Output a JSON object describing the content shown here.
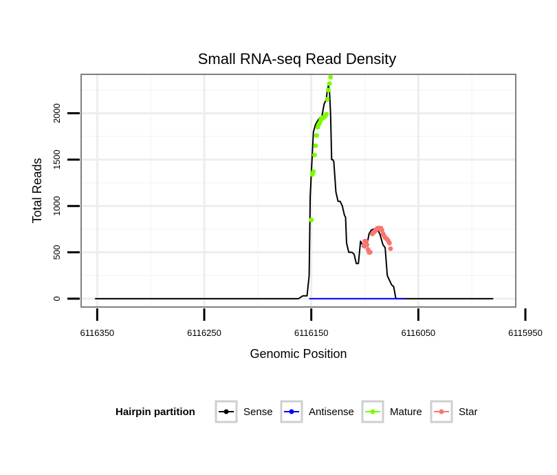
{
  "chart_data": {
    "type": "line",
    "title": "Small RNA-seq Read Density",
    "xlabel": "Genomic Position",
    "ylabel": "Total Reads",
    "x_reversed": true,
    "xlim": [
      6116365,
      6115959
    ],
    "ylim": [
      -90,
      2420
    ],
    "x_ticks": [
      6116350,
      6116250,
      6116150,
      6116050,
      6115950
    ],
    "x_tick_labels": [
      "6116350",
      "6116250",
      "6116150",
      "6116050",
      "6115950"
    ],
    "y_ticks": [
      0,
      500,
      1000,
      1500,
      2000
    ],
    "y_tick_labels": [
      "0",
      "500",
      "1000",
      "1500",
      "2000"
    ],
    "grid": true,
    "legend": {
      "title": "Hairpin partition",
      "placement": "bottom",
      "entries": [
        {
          "label": "Sense",
          "color": "#000000"
        },
        {
          "label": "Antisense",
          "color": "#0000ff"
        },
        {
          "label": "Mature",
          "color": "#7cfc00"
        },
        {
          "label": "Star",
          "color": "#f8766d"
        }
      ]
    },
    "series": [
      {
        "name": "Sense",
        "color": "#000000",
        "x": [
          6116352,
          6116162,
          6116158,
          6116154,
          6116152,
          6116151,
          6116150,
          6116148,
          6116146,
          6116144,
          6116142,
          6116140,
          6116138,
          6116136,
          6116135,
          6116134,
          6116133,
          6116132,
          6116131,
          6116130,
          6116129,
          6116127,
          6116125,
          6116123,
          6116121,
          6116119,
          6116118,
          6116117,
          6116115,
          6116114,
          6116112,
          6116110,
          6116108,
          6116106,
          6116104,
          6116102,
          6116100,
          6116098,
          6116096,
          6116094,
          6116092,
          6116090,
          6116088,
          6116086,
          6116085,
          6116084,
          6116083,
          6116081,
          6116079,
          6116077,
          6116075,
          6116073,
          6116071,
          6116069,
          6116068,
          6116067,
          6116066,
          6116065,
          6116063,
          6116061,
          6115980
        ],
        "y": [
          0,
          0,
          30,
          30,
          250,
          1100,
          1350,
          1800,
          1880,
          1920,
          1950,
          1970,
          2100,
          2150,
          2250,
          2300,
          2250,
          2000,
          1500,
          1500,
          1480,
          1150,
          1050,
          1050,
          1000,
          900,
          880,
          600,
          500,
          500,
          500,
          480,
          380,
          380,
          620,
          580,
          550,
          580,
          700,
          740,
          750,
          760,
          740,
          700,
          660,
          620,
          580,
          550,
          250,
          200,
          150,
          130,
          0,
          0,
          0,
          0,
          0,
          0,
          0,
          0,
          0
        ]
      },
      {
        "name": "Antisense",
        "color": "#0000ff",
        "x": [
          6116152,
          6116063
        ],
        "y": [
          0,
          0
        ]
      },
      {
        "name": "Mature",
        "color": "#7cfc00",
        "x": [
          6116150,
          6116149,
          6116148,
          6116147,
          6116146,
          6116145,
          6116144,
          6116143,
          6116142,
          6116141,
          6116140,
          6116139,
          6116138,
          6116137,
          6116136,
          6116135,
          6116134,
          6116133,
          6116132
        ],
        "y": [
          850,
          1340,
          1370,
          1550,
          1650,
          1760,
          1850,
          1880,
          1900,
          1930,
          1950,
          1950,
          1960,
          1970,
          1990,
          2150,
          2250,
          2320,
          2390
        ]
      },
      {
        "name": "Star",
        "color": "#f8766d",
        "x": [
          6116101,
          6116100,
          6116099,
          6116098,
          6116097,
          6116096,
          6116095,
          6116093,
          6116091,
          6116090,
          6116089,
          6116088,
          6116087,
          6116086,
          6116085,
          6116084,
          6116083,
          6116082,
          6116081,
          6116080,
          6116079,
          6116078,
          6116077,
          6116076
        ],
        "y": [
          570,
          620,
          620,
          580,
          530,
          500,
          500,
          700,
          720,
          740,
          750,
          760,
          760,
          750,
          760,
          740,
          700,
          680,
          660,
          650,
          640,
          620,
          600,
          540
        ]
      }
    ]
  }
}
